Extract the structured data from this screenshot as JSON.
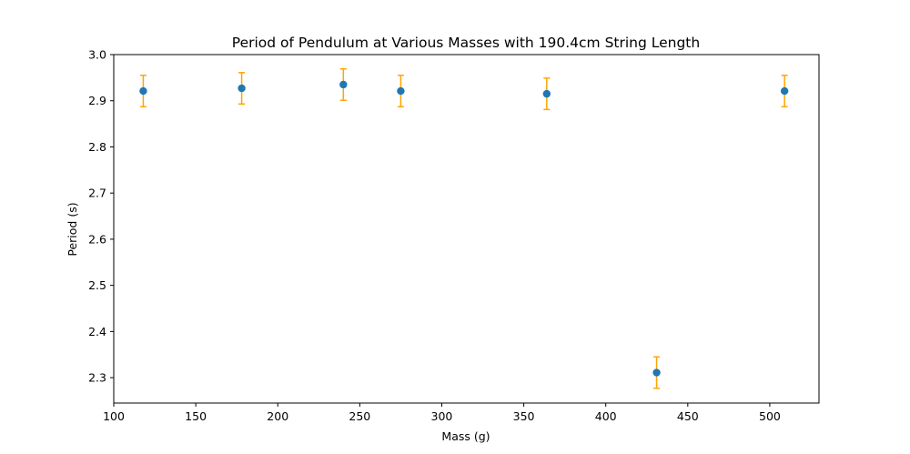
{
  "chart_data": {
    "type": "scatter",
    "title": "Period of Pendulum at Various Masses with 190.4cm String Length",
    "xlabel": "Mass (g)",
    "ylabel": "Period (s)",
    "xlim": [
      100,
      530
    ],
    "ylim": [
      2.245,
      3.0
    ],
    "grid": false,
    "xticks": [
      100,
      150,
      200,
      250,
      300,
      350,
      400,
      450,
      500
    ],
    "xtick_labels": [
      "100",
      "150",
      "200",
      "250",
      "300",
      "350",
      "400",
      "450",
      "500"
    ],
    "yticks": [
      2.3,
      2.4,
      2.5,
      2.6,
      2.7,
      2.8,
      2.9,
      3.0
    ],
    "ytick_labels": [
      "2.3",
      "2.4",
      "2.5",
      "2.6",
      "2.7",
      "2.8",
      "2.9",
      "3.0"
    ],
    "series": [
      {
        "x": [
          118,
          178,
          240,
          275,
          364,
          431,
          509
        ],
        "y": [
          2.921,
          2.927,
          2.935,
          2.921,
          2.915,
          2.311,
          2.921
        ],
        "yerr": [
          0.034,
          0.034,
          0.034,
          0.034,
          0.034,
          0.034,
          0.034
        ],
        "marker_color": "#1f77b4",
        "errorbar_color": "#ffa500"
      }
    ]
  }
}
